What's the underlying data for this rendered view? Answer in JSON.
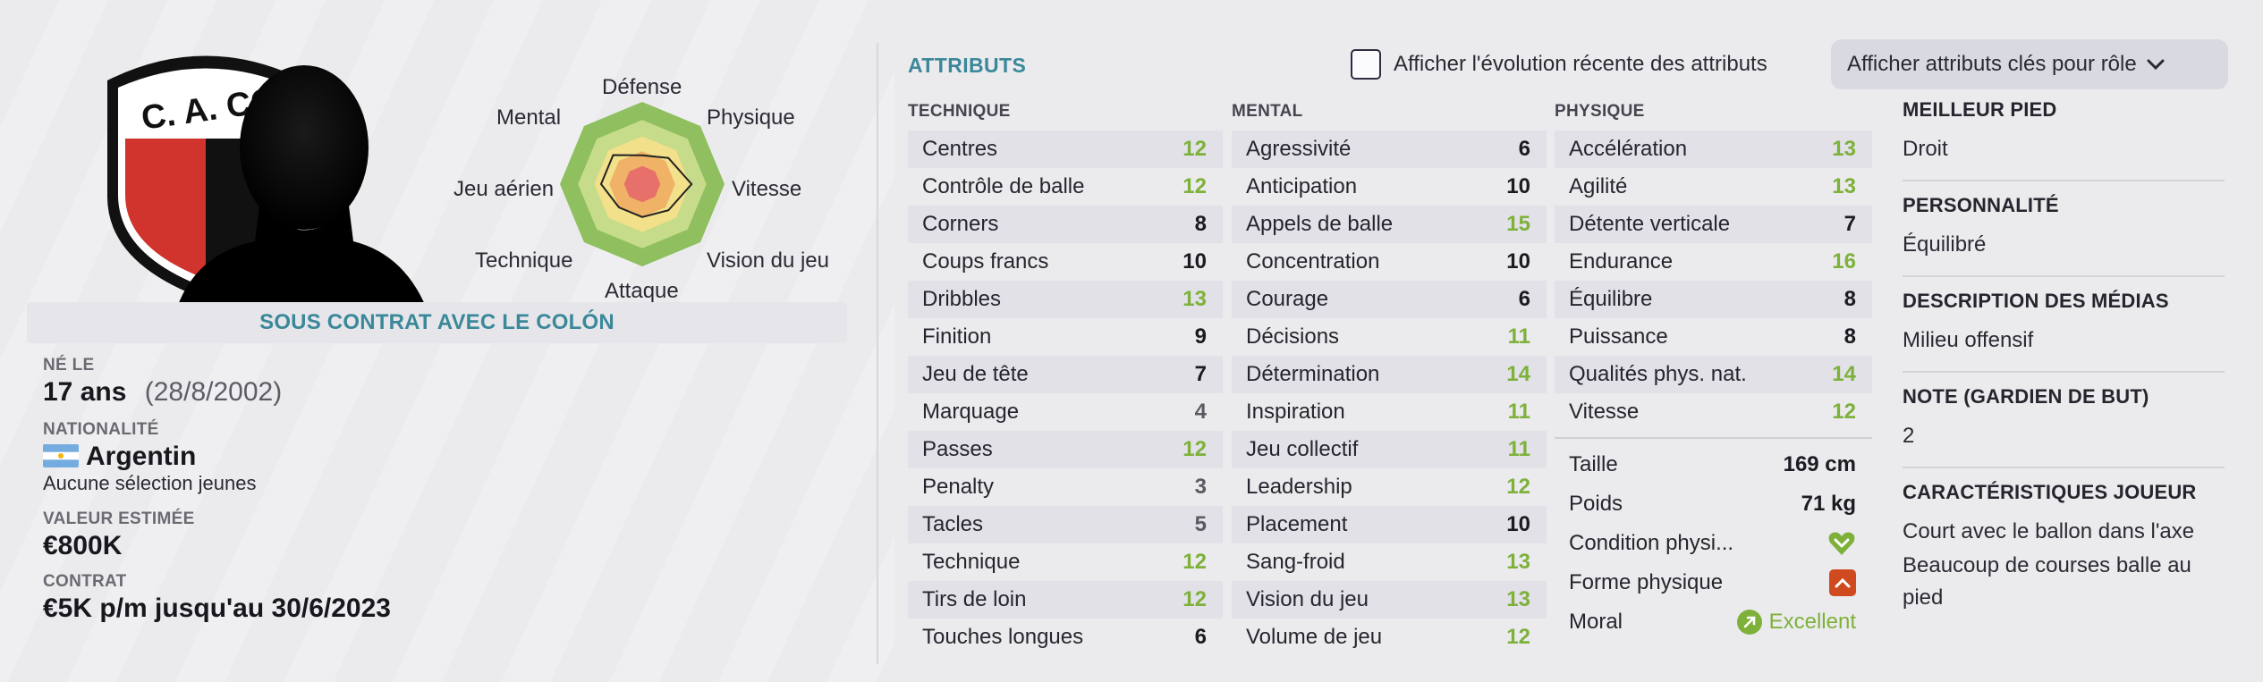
{
  "profile": {
    "club_crest_text": "C. A. COL",
    "contract_banner": "SOUS CONTRAT AVEC LE COLÓN",
    "born_label": "NÉ LE",
    "age": "17 ans",
    "birth_date": "(28/8/2002)",
    "nationality_label": "NATIONALITÉ",
    "nationality": "Argentin",
    "youth_caps": "Aucune sélection jeunes",
    "value_label": "VALEUR ESTIMÉE",
    "value": "€800K",
    "contract_label": "CONTRAT",
    "contract": "€5K p/m jusqu'au 30/6/2023"
  },
  "radar": {
    "labels": [
      "Défense",
      "Physique",
      "Vitesse",
      "Vision du jeu",
      "Attaque",
      "Technique",
      "Jeu aérien",
      "Mental"
    ],
    "values": [
      0.35,
      0.45,
      0.6,
      0.45,
      0.4,
      0.4,
      0.5,
      0.5
    ]
  },
  "attributes": {
    "title": "ATTRIBUTS",
    "show_evolution_label": "Afficher l'évolution récente des attributs",
    "role_button_label": "Afficher attributs clés pour rôle",
    "columns": [
      {
        "header": "TECHNIQUE",
        "rows": [
          {
            "name": "Centres",
            "value": "12"
          },
          {
            "name": "Contrôle de balle",
            "value": "12"
          },
          {
            "name": "Corners",
            "value": "8"
          },
          {
            "name": "Coups francs",
            "value": "10"
          },
          {
            "name": "Dribbles",
            "value": "13"
          },
          {
            "name": "Finition",
            "value": "9"
          },
          {
            "name": "Jeu de tête",
            "value": "7"
          },
          {
            "name": "Marquage",
            "value": "4"
          },
          {
            "name": "Passes",
            "value": "12"
          },
          {
            "name": "Penalty",
            "value": "3"
          },
          {
            "name": "Tacles",
            "value": "5"
          },
          {
            "name": "Technique",
            "value": "12"
          },
          {
            "name": "Tirs de loin",
            "value": "12"
          },
          {
            "name": "Touches longues",
            "value": "6"
          }
        ]
      },
      {
        "header": "MENTAL",
        "rows": [
          {
            "name": "Agressivité",
            "value": "6"
          },
          {
            "name": "Anticipation",
            "value": "10"
          },
          {
            "name": "Appels de balle",
            "value": "15"
          },
          {
            "name": "Concentration",
            "value": "10"
          },
          {
            "name": "Courage",
            "value": "6"
          },
          {
            "name": "Décisions",
            "value": "11"
          },
          {
            "name": "Détermination",
            "value": "14"
          },
          {
            "name": "Inspiration",
            "value": "11"
          },
          {
            "name": "Jeu collectif",
            "value": "11"
          },
          {
            "name": "Leadership",
            "value": "12"
          },
          {
            "name": "Placement",
            "value": "10"
          },
          {
            "name": "Sang-froid",
            "value": "13"
          },
          {
            "name": "Vision du jeu",
            "value": "13"
          },
          {
            "name": "Volume de jeu",
            "value": "12"
          }
        ]
      },
      {
        "header": "PHYSIQUE",
        "rows": [
          {
            "name": "Accélération",
            "value": "13"
          },
          {
            "name": "Agilité",
            "value": "13"
          },
          {
            "name": "Détente verticale",
            "value": "7"
          },
          {
            "name": "Endurance",
            "value": "16"
          },
          {
            "name": "Équilibre",
            "value": "8"
          },
          {
            "name": "Puissance",
            "value": "8"
          },
          {
            "name": "Qualités phys. nat.",
            "value": "14"
          },
          {
            "name": "Vitesse",
            "value": "12"
          }
        ]
      }
    ],
    "physical_extra": {
      "height_label": "Taille",
      "height": "169 cm",
      "weight_label": "Poids",
      "weight": "71 kg",
      "condition_label": "Condition physi...",
      "form_label": "Forme physique",
      "morale_label": "Moral",
      "morale": "Excellent"
    }
  },
  "details": {
    "foot_label": "MEILLEUR PIED",
    "foot": "Droit",
    "personality_label": "PERSONNALITÉ",
    "personality": "Équilibré",
    "media_label": "DESCRIPTION DES MÉDIAS",
    "media": "Milieu offensif",
    "gk_label": "NOTE (GARDIEN DE BUT)",
    "gk": "2",
    "traits_label": "CARACTÉRISTIQUES JOUEUR",
    "traits": [
      "Court avec le ballon dans l'axe",
      "Beaucoup de courses balle au pied"
    ]
  },
  "colors": {
    "accent": "#3a8899",
    "good": "#7eb13a",
    "crest_red": "#d0342c"
  }
}
